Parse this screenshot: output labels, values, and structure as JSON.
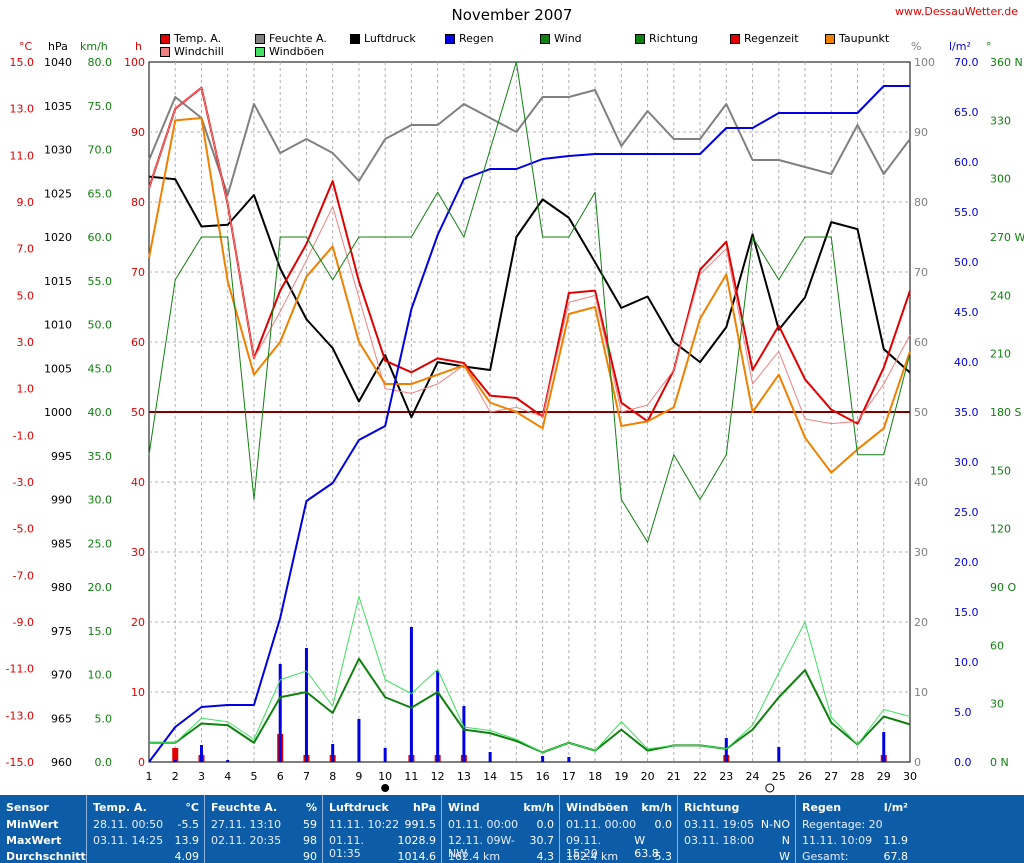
{
  "title": "November 2007",
  "site": "www.DessauWetter.de",
  "legend": [
    {
      "label": "Temp. A.",
      "color": "#e00000"
    },
    {
      "label": "Windchill",
      "color": "#f08080"
    },
    {
      "label": "Feuchte A.",
      "color": "#808080"
    },
    {
      "label": "Windböen",
      "color": "#40e060"
    },
    {
      "label": "Luftdruck",
      "color": "#000000"
    },
    {
      "label": "Regen",
      "color": "#0000e0"
    },
    {
      "label": "Wind",
      "color": "#108010"
    },
    {
      "label": "Richtung",
      "color": "#108010"
    },
    {
      "label": "Regenzeit",
      "color": "#e00000"
    },
    {
      "label": "Taupunkt",
      "color": "#f08000"
    }
  ],
  "units": {
    "temp": "°C",
    "press": "hPa",
    "wind": "km/h",
    "hours": "h",
    "hum": "%",
    "rain": "l/m²",
    "dir": "°"
  },
  "chart_data": {
    "type": "line",
    "x": [
      1,
      2,
      3,
      4,
      5,
      6,
      7,
      8,
      9,
      10,
      11,
      12,
      13,
      14,
      15,
      16,
      17,
      18,
      19,
      20,
      21,
      22,
      23,
      24,
      25,
      26,
      27,
      28,
      29,
      30
    ],
    "axes": {
      "temp": {
        "label": "°C",
        "range": [
          -15.0,
          15.0
        ],
        "ticks": [
          "15.0",
          "13.0",
          "11.0",
          "9.0",
          "7.0",
          "5.0",
          "3.0",
          "1.0",
          "-1.0",
          "-3.0",
          "-5.0",
          "-7.0",
          "-9.0",
          "-11.0",
          "-13.0",
          "-15.0"
        ]
      },
      "pressure": {
        "label": "hPa",
        "range": [
          960,
          1040
        ],
        "ticks": [
          "1040",
          "1035",
          "1030",
          "1025",
          "1020",
          "1015",
          "1010",
          "1005",
          "1000",
          "995",
          "990",
          "985",
          "980",
          "975",
          "970",
          "965",
          "960"
        ]
      },
      "wind": {
        "label": "km/h",
        "range": [
          0,
          80
        ],
        "ticks": [
          "80.0",
          "75.0",
          "70.0",
          "65.0",
          "60.0",
          "55.0",
          "50.0",
          "45.0",
          "40.0",
          "35.0",
          "30.0",
          "25.0",
          "20.0",
          "15.0",
          "10.0",
          "5.0",
          "0.0"
        ]
      },
      "hours": {
        "label": "h",
        "range": [
          0,
          100
        ],
        "ticks": [
          "100",
          "90",
          "80",
          "70",
          "60",
          "50",
          "40",
          "30",
          "20",
          "10",
          "0"
        ]
      },
      "humidity": {
        "label": "%",
        "range": [
          0,
          100
        ],
        "ticks": [
          "100",
          "90",
          "80",
          "70",
          "60",
          "50",
          "40",
          "30",
          "20",
          "10",
          "0"
        ]
      },
      "rain": {
        "label": "l/m²",
        "range": [
          0,
          70
        ],
        "ticks": [
          "70.0",
          "65.0",
          "60.0",
          "55.0",
          "50.0",
          "45.0",
          "40.0",
          "35.0",
          "30.0",
          "25.0",
          "20.0",
          "15.0",
          "10.0",
          "5.0",
          "0.0"
        ]
      },
      "direction": {
        "label": "°",
        "range": [
          0,
          360
        ],
        "ticks": [
          "360 N",
          "330",
          "300",
          "270 W",
          "240",
          "210",
          "180 S",
          "150",
          "120",
          "90 O",
          "60",
          "30",
          "0 N"
        ]
      }
    },
    "grid": true,
    "reference_line": {
      "axis": "temp",
      "value": 0.0,
      "color": "#800000"
    },
    "series": [
      {
        "name": "Feuchte A.",
        "axis": "humidity",
        "color": "#808080",
        "values": [
          86,
          95,
          92,
          81,
          94,
          87,
          89,
          87,
          83,
          89,
          91,
          91,
          94,
          92,
          90,
          95,
          95,
          96,
          88,
          93,
          89,
          89,
          94,
          86,
          86,
          85,
          84,
          91,
          84,
          89
        ]
      },
      {
        "name": "Luftdruck",
        "axis": "pressure",
        "color": "#000000",
        "values": [
          1026.9,
          1026.6,
          1021.2,
          1021.4,
          1024.8,
          1016.4,
          1010.6,
          1007.3,
          1001.2,
          1006.5,
          999.4,
          1005.7,
          1005.2,
          1004.8,
          1020.0,
          1024.3,
          1022.2,
          1017.1,
          1011.9,
          1013.2,
          1008.0,
          1005.7,
          1009.7,
          1020.3,
          1009.4,
          1013.1,
          1021.7,
          1020.9,
          1007.2,
          1004.5
        ]
      },
      {
        "name": "Temp. A.",
        "axis": "temp",
        "color": "#e00000",
        "values": [
          9.6,
          13.0,
          13.9,
          8.9,
          2.3,
          5.2,
          7.2,
          9.9,
          5.6,
          2.2,
          1.7,
          2.3,
          2.1,
          0.7,
          0.6,
          -0.2,
          5.1,
          5.2,
          0.4,
          -0.4,
          1.8,
          6.1,
          7.3,
          1.8,
          3.7,
          1.4,
          0.1,
          -0.5,
          1.9,
          5.2
        ]
      },
      {
        "name": "Windchill",
        "axis": "temp",
        "color": "#f08080",
        "values": [
          9.6,
          13.0,
          13.9,
          8.9,
          2.3,
          4.3,
          6.5,
          8.8,
          4.9,
          1.0,
          0.8,
          1.2,
          2.0,
          0.0,
          0.2,
          -0.2,
          4.7,
          5.0,
          0.0,
          0.3,
          1.8,
          5.9,
          7.0,
          1.2,
          2.6,
          -0.3,
          -0.5,
          -0.4,
          1.2,
          3.3
        ]
      },
      {
        "name": "Taupunkt",
        "axis": "temp",
        "color": "#f08000",
        "values": [
          6.6,
          12.5,
          12.6,
          5.6,
          1.6,
          3.0,
          5.8,
          7.1,
          3.0,
          1.2,
          1.2,
          1.6,
          2.0,
          0.4,
          0.0,
          -0.7,
          4.2,
          4.5,
          -0.6,
          -0.4,
          0.2,
          4.0,
          5.9,
          0.0,
          1.6,
          -1.1,
          -2.6,
          -1.6,
          -0.7,
          2.6
        ]
      },
      {
        "name": "Regen",
        "axis": "rain",
        "color": "#0000e0",
        "values": [
          0.0,
          3.5,
          5.5,
          5.7,
          5.7,
          14.4,
          26.1,
          27.9,
          32.2,
          33.6,
          45.3,
          52.7,
          58.3,
          59.3,
          59.3,
          60.3,
          60.6,
          60.8,
          60.8,
          60.8,
          60.8,
          60.8,
          63.4,
          63.4,
          64.9,
          64.9,
          64.9,
          64.9,
          67.6,
          67.6
        ]
      },
      {
        "name": "Richtung",
        "axis": "direction",
        "color": "#108010",
        "values": [
          158,
          248,
          270,
          270,
          135,
          270,
          270,
          248,
          270,
          270,
          270,
          293,
          270,
          315,
          360,
          270,
          270,
          293,
          135,
          113,
          158,
          135,
          158,
          270,
          248,
          270,
          270,
          158,
          158,
          210
        ]
      },
      {
        "name": "Wind",
        "axis": "wind",
        "color": "#108010",
        "values": [
          2.2,
          2.2,
          4.4,
          4.2,
          2.2,
          7.4,
          8.0,
          5.6,
          11.8,
          7.4,
          6.2,
          8.0,
          3.7,
          3.3,
          2.4,
          1.1,
          2.2,
          1.3,
          3.7,
          1.3,
          1.9,
          1.9,
          1.5,
          3.7,
          7.4,
          10.5,
          4.5,
          2.0,
          5.2,
          4.3
        ]
      },
      {
        "name": "Windböen",
        "axis": "wind",
        "color": "#40e060",
        "values": [
          2.2,
          2.2,
          5.0,
          4.6,
          2.6,
          9.4,
          10.4,
          6.4,
          18.9,
          9.4,
          7.8,
          10.6,
          4.0,
          3.6,
          2.6,
          1.1,
          2.2,
          1.3,
          4.6,
          1.5,
          1.9,
          1.9,
          1.5,
          4.2,
          10.2,
          16.0,
          5.1,
          2.0,
          6.0,
          5.2
        ]
      }
    ],
    "rain_bars": {
      "axis": "rain",
      "color": "#0000e0",
      "values": [
        0,
        0.2,
        1.7,
        0.2,
        0,
        9.8,
        11.4,
        1.8,
        4.3,
        1.4,
        13.5,
        9.1,
        5.6,
        1.0,
        0,
        0.6,
        0.5,
        0,
        0,
        0,
        0,
        0,
        2.4,
        0,
        1.5,
        0,
        0,
        0,
        3.0,
        0
      ]
    },
    "rain_time_bars": {
      "axis": "hours",
      "color": "#e00000",
      "values": [
        0,
        2,
        1,
        0,
        0,
        4,
        1,
        1,
        0,
        0,
        1,
        1,
        1,
        0,
        0,
        0,
        0,
        0,
        0,
        0,
        0,
        0,
        1,
        0,
        0,
        0,
        0,
        0,
        1,
        0
      ]
    }
  },
  "stats": {
    "sensor": {
      "title": "Sensor",
      "rows": [
        "MinWert",
        "MaxWert",
        "Durchschnitt"
      ]
    },
    "panels": [
      {
        "title": "Temp. A.",
        "unit": "°C",
        "rows": [
          {
            "left": "28.11.  00:50",
            "right": "-5.5"
          },
          {
            "left": "03.11.  14:25",
            "right": "13.9"
          },
          {
            "left": "",
            "right": "4.09"
          }
        ]
      },
      {
        "title": "Feuchte A.",
        "unit": "%",
        "rows": [
          {
            "left": "27.11.  13:10",
            "right": "59"
          },
          {
            "left": "02.11.  20:35",
            "right": "98"
          },
          {
            "left": "",
            "right": "90"
          }
        ]
      },
      {
        "title": "Luftdruck",
        "unit": "hPa",
        "rows": [
          {
            "left": "11.11.  10:22",
            "right": "991.5"
          },
          {
            "left": "01.11.  01:35",
            "right": "1028.9"
          },
          {
            "left": "",
            "right": "1014.6"
          }
        ]
      },
      {
        "title": "Wind",
        "unit": "km/h",
        "rows": [
          {
            "left": "01.11.  00:00",
            "right": "0.0"
          },
          {
            "left": "12.11.  09W-NW",
            "right": "30.7"
          },
          {
            "left": "162.4 km",
            "right": "4.3"
          }
        ]
      },
      {
        "title": "Windböen",
        "unit": "km/h",
        "rows": [
          {
            "left": "01.11.  00:00",
            "right": "0.0"
          },
          {
            "left": "09.11.  15:20",
            "right": "W 63.8"
          },
          {
            "left": "162.4 km",
            "right": "5.3"
          }
        ]
      },
      {
        "title": "Richtung",
        "unit": "",
        "rows": [
          {
            "left": "03.11.  19:05",
            "right": "N-NO"
          },
          {
            "left": "03.11.  18:00",
            "right": "N"
          },
          {
            "left": "",
            "right": "W"
          }
        ]
      },
      {
        "title": "Regen",
        "unit": "l/m²",
        "rows": [
          {
            "left": "Regentage: 20",
            "right": ""
          },
          {
            "left": "11.11.  10:09",
            "right": "11.9"
          },
          {
            "left": "Gesamt:",
            "right": "67.8"
          }
        ]
      }
    ]
  }
}
